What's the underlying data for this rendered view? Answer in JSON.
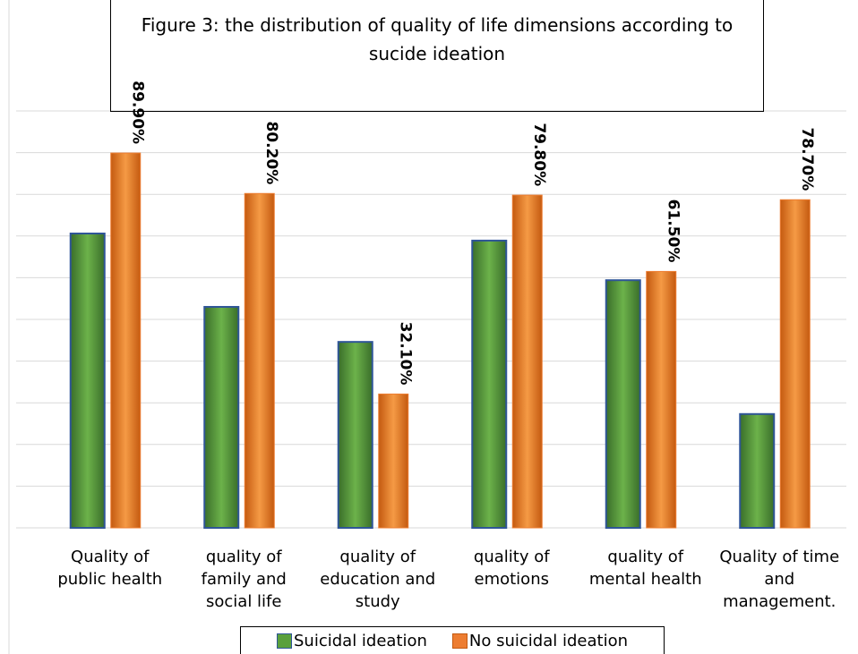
{
  "chart_data": {
    "type": "bar",
    "title": "Figure 3: the distribution of quality of life dimensions according to sucide ideation",
    "categories": [
      "Quality of public health",
      "quality of family and social life",
      "quality of education and study",
      "quality of emotions",
      "quality of mental health",
      "Quality of time and management."
    ],
    "series": [
      {
        "name": "Suicidal ideation",
        "color": "#5aa03c",
        "values": [
          70.6,
          53.0,
          44.6,
          68.9,
          59.4,
          27.3
        ]
      },
      {
        "name": "No suicidal ideation",
        "color": "#ed7d31",
        "values": [
          89.9,
          80.2,
          32.1,
          79.8,
          61.5,
          78.7
        ],
        "value_labels": [
          "89.90%",
          "80.20%",
          "32.10%",
          "79.80%",
          "61.50%",
          "78.70%"
        ]
      }
    ],
    "ylim": [
      0,
      100
    ],
    "yticks": [
      0,
      10,
      20,
      30,
      40,
      50,
      60,
      70,
      80,
      90,
      100
    ],
    "grid": true
  }
}
